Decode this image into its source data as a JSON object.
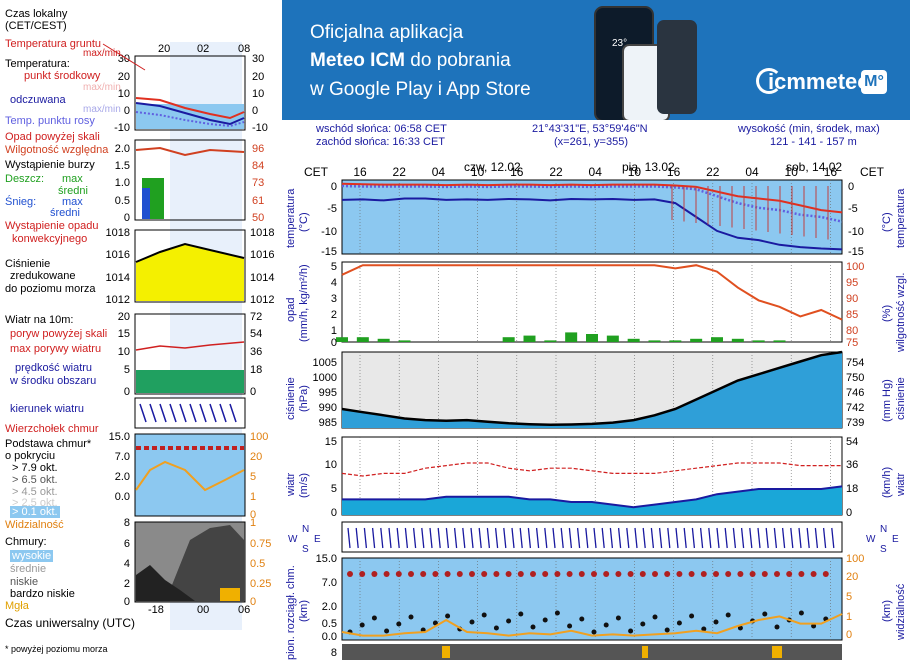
{
  "colors": {
    "banner": "#1e73bb",
    "temp": "#e03020",
    "feel": "#1a1aa0",
    "dew": "#6060e0",
    "humid": "#e05020",
    "rain": "#20a020",
    "snow": "#2050d0",
    "pressure_fill": "#f4f000",
    "wind": "#1a1aa0",
    "gust": "#d02020",
    "sky": "#8cc8f0",
    "night": "#e0e0e0",
    "vis": "#f0a020"
  },
  "banner": {
    "line1": "Oficjalna aplikacja",
    "line2_bold": "Meteo ICM",
    "line2_rest": " do pobrania",
    "line3": "w Google Play i App Store",
    "logo_text": "icmmeteo",
    "logo_badge": "M°",
    "phone_temp": "23°"
  },
  "info": {
    "sunrise": "wschód słońca: 06:58 CET",
    "sunset": "zachód słońca: 16:33 CET",
    "coords": "21°43'31\"E, 53°59'46\"N",
    "grid": "(x=261,  y=355)",
    "alt_label": "wysokość (min, środek, max)",
    "alt_values": "121 - 141 - 157 m"
  },
  "legend": {
    "time_local": "Czas lokalny",
    "time_local2": "(CET/CEST)",
    "time_utc": "Czas uniwersalny (UTC)",
    "footnote": "* powyżej poziomu morza",
    "top_hours": [
      "20",
      "02",
      "08"
    ],
    "bottom_hours": [
      "-18",
      "00",
      "06"
    ],
    "ground_temp": "Temperatura gruntu",
    "maxmin": "max/min",
    "temperature": "Temperatura:",
    "mid_point": "punkt środkowy",
    "maxmin2": "max/min",
    "feels": "odczuwana",
    "maxmin3": "max/min",
    "dew": "Temp. punktu rosy",
    "precip_above": "Opad powyżej skali",
    "humidity": "Wilgotność względna",
    "storm": "Wystąpienie burzy",
    "rain": "Deszcz:",
    "rain_max": "max",
    "rain_avg": "średni",
    "snow": "Śnieg:",
    "snow_max": "max",
    "snow_avg": "średni",
    "precip_occ": "Wystąpienie opadu",
    "precip_occ2": "konwekcyjnego",
    "pressure1": "Ciśnienie",
    "pressure2": "zredukowane",
    "pressure3": "do poziomu morza",
    "wind10": "Wiatr na 10m:",
    "gust_above": "poryw powyżej skali",
    "max_gust": "max porywy wiatru",
    "wind_speed": "prędkość wiatru",
    "wind_area": "w środku obszaru",
    "wind_dir": "kierunek wiatru",
    "cloud_top": "Wierzchołek chmur",
    "cloud_base": "Podstawa chmur*",
    "coverage": "o pokryciu",
    "okt": [
      "> 7.9 okt.",
      "> 6.5 okt.",
      "> 4.5 okt.",
      "> 2.5 okt.",
      "> 0.1 okt."
    ],
    "visibility": "Widzialność",
    "clouds": "Chmury:",
    "high": "wysokie",
    "mid": "średnie",
    "low": "niskie",
    "very_low": "bardzo niskie",
    "fog": "Mgła",
    "ax_temp_l": [
      "30",
      "20",
      "10",
      "0",
      "-10"
    ],
    "ax_temp_r": [
      "30",
      "20",
      "10",
      "0",
      "-10"
    ],
    "ax_prec_l": [
      "2.0",
      "1.5",
      "1.0",
      "0.5",
      "0"
    ],
    "ax_prec_r": [
      "96",
      "84",
      "73",
      "61",
      "50"
    ],
    "ax_pres": [
      "1018",
      "1016",
      "1014",
      "1012"
    ],
    "ax_wind_l": [
      "20",
      "15",
      "10",
      "5",
      "0"
    ],
    "ax_wind_r": [
      "72",
      "54",
      "36",
      "18",
      "0"
    ],
    "ax_base_l": [
      "15.0",
      "7.0",
      "2.0",
      "0.0"
    ],
    "ax_base_r": [
      "100",
      "20",
      "5",
      "1",
      "0"
    ],
    "ax_cloud_l": [
      "8",
      "6",
      "4",
      "2",
      "0"
    ],
    "ax_cloud_r": [
      "1",
      "0.75",
      "0.5",
      "0.25",
      "0"
    ]
  },
  "main": {
    "cet": "CET",
    "hours": [
      "16",
      "22",
      "04",
      "10",
      "16",
      "22",
      "04",
      "10",
      "16",
      "22",
      "04",
      "10",
      "16"
    ],
    "days": [
      "czw, 12.02",
      "pią, 13.02",
      "sob, 14.02"
    ],
    "lbl_temp": "temperatura",
    "lbl_temp_u": "(°C)",
    "lbl_prec": "opad",
    "lbl_prec_u": "(mm/h, kg/m²/h)",
    "lbl_hum": "wilgotność wzgl.",
    "lbl_hum_u": "(%)",
    "lbl_pres": "ciśnienie",
    "lbl_pres_u": "(hPa)",
    "lbl_pres_r": "ciśnienie",
    "lbl_pres_ru": "(mm Hg)",
    "lbl_wind": "wiatr",
    "lbl_wind_u": "(m/s)",
    "lbl_wind_ru": "(km/h)",
    "lbl_base": "pion. rozciągł. chm.",
    "lbl_base_u": "(km)",
    "lbl_vis": "widzialność",
    "lbl_vis_u": "(km)",
    "compass": "N",
    "compass_w": "W",
    "compass_e": "E",
    "compass_s": "S",
    "ax_temp": [
      "0",
      "-5",
      "-10",
      "-15"
    ],
    "ax_prec_l": [
      "5",
      "4",
      "3",
      "2",
      "1",
      "0"
    ],
    "ax_prec_r": [
      "100",
      "95",
      "90",
      "85",
      "80",
      "75"
    ],
    "ax_pres_l": [
      "1005",
      "1000",
      "995",
      "990",
      "985"
    ],
    "ax_pres_r": [
      "754",
      "750",
      "746",
      "742",
      "739"
    ],
    "ax_wind_l": [
      "15",
      "10",
      "5",
      "0"
    ],
    "ax_wind_r": [
      "54",
      "36",
      "18",
      "0"
    ],
    "ax_base_l": [
      "15.0",
      "7.0",
      "2.0",
      "0.5",
      "0.0"
    ],
    "ax_base_r": [
      "100",
      "20",
      "5",
      "1",
      "0"
    ],
    "ax_bottom": "8"
  },
  "chart_data": [
    {
      "type": "line",
      "title": "temperatura",
      "ylabel": "(°C)",
      "ylim": [
        -15,
        1
      ],
      "series": [
        {
          "name": "temperatura (punkt środkowy)",
          "values": [
            0.2,
            0.1,
            0,
            0,
            0,
            -0.1,
            0,
            -0.1,
            0,
            0,
            -0.1,
            0,
            -0.1,
            0,
            0,
            0,
            -0.2,
            -0.5,
            -1.5,
            -2.5,
            -3,
            -3.5,
            -4.5,
            -5.5,
            -6
          ]
        },
        {
          "name": "odczuwana",
          "values": [
            -3.3,
            -3.2,
            -3.4,
            -3,
            -3,
            -3.3,
            -3.2,
            -3.3,
            -3.1,
            -3.2,
            -3.4,
            -3.1,
            -3.2,
            -3.1,
            -3.3,
            -3.2,
            -4,
            -7,
            -10,
            -11.5,
            -12,
            -13,
            -13.5,
            -13.8,
            -14
          ]
        },
        {
          "name": "temp. punktu rosy",
          "values": [
            -0.3,
            -0.4,
            -0.4,
            -0.4,
            -0.4,
            -0.5,
            -0.4,
            -0.5,
            -0.4,
            -0.4,
            -0.5,
            -0.4,
            -0.5,
            -0.4,
            -0.4,
            -0.4,
            -0.6,
            -1,
            -2.5,
            -4,
            -5,
            -5.5,
            -6.5,
            -7,
            -8
          ]
        }
      ]
    },
    {
      "type": "line",
      "title": "opad / wilgotność wzgl.",
      "ylim_left": [
        0,
        5
      ],
      "ylim_right": [
        75,
        100
      ],
      "series": [
        {
          "name": "wilgotność względna (%)",
          "values": [
            96,
            99,
            99,
            99,
            99,
            99,
            99,
            99,
            99,
            99,
            99,
            99,
            99,
            99,
            99,
            99,
            98,
            99,
            97,
            92,
            88,
            86,
            83,
            85,
            82
          ]
        },
        {
          "name": "opad (mm/h)",
          "values": [
            0.3,
            0.3,
            0.2,
            0.1,
            0,
            0,
            0,
            0,
            0.3,
            0.4,
            0.1,
            0.6,
            0.5,
            0.4,
            0.2,
            0.1,
            0.1,
            0.2,
            0.3,
            0.2,
            0.1,
            0.1,
            0,
            0,
            0
          ]
        }
      ]
    },
    {
      "type": "area",
      "title": "ciśnienie",
      "ylabel": "(hPa)",
      "ylim": [
        984,
        1008
      ],
      "series": [
        {
          "name": "ciśnienie",
          "values": [
            990,
            989,
            988,
            987,
            986.5,
            986.3,
            986.5,
            986,
            985.5,
            985.2,
            985,
            985.1,
            985.3,
            985.7,
            986.5,
            988,
            990,
            993,
            996,
            999,
            1001,
            1003,
            1005,
            1007,
            1008
          ]
        }
      ]
    },
    {
      "type": "line",
      "title": "wiatr",
      "ylabel": "(m/s)",
      "ylim": [
        0,
        15
      ],
      "series": [
        {
          "name": "max porywy wiatru",
          "values": [
            8,
            7.5,
            8,
            8,
            9,
            9.5,
            10,
            10,
            9,
            8.5,
            9,
            9,
            8.5,
            8,
            8,
            8,
            8.5,
            9,
            9.5,
            10,
            10,
            10,
            9.5,
            9.5,
            9.5
          ]
        },
        {
          "name": "prędkość wiatru",
          "values": [
            3,
            3,
            3,
            3,
            3,
            3.5,
            3.5,
            3.5,
            3.5,
            3,
            3,
            2.5,
            2.5,
            2,
            1.5,
            2,
            2.5,
            3,
            4,
            4.5,
            5,
            5,
            5,
            5,
            5.5
          ]
        }
      ]
    },
    {
      "type": "line",
      "title": "widzialność",
      "ylabel": "(km)",
      "series": [
        {
          "name": "widzialność",
          "values": [
            0.5,
            0.2,
            0.2,
            0.4,
            0.5,
            1.5,
            0.5,
            0.4,
            0.2,
            0.4,
            0.3,
            0.6,
            0.2,
            0.3,
            0.2,
            0.3,
            0.4,
            0.6,
            0.4,
            1.0,
            1.5,
            1.8,
            1.2,
            1.2,
            2
          ]
        }
      ]
    }
  ]
}
